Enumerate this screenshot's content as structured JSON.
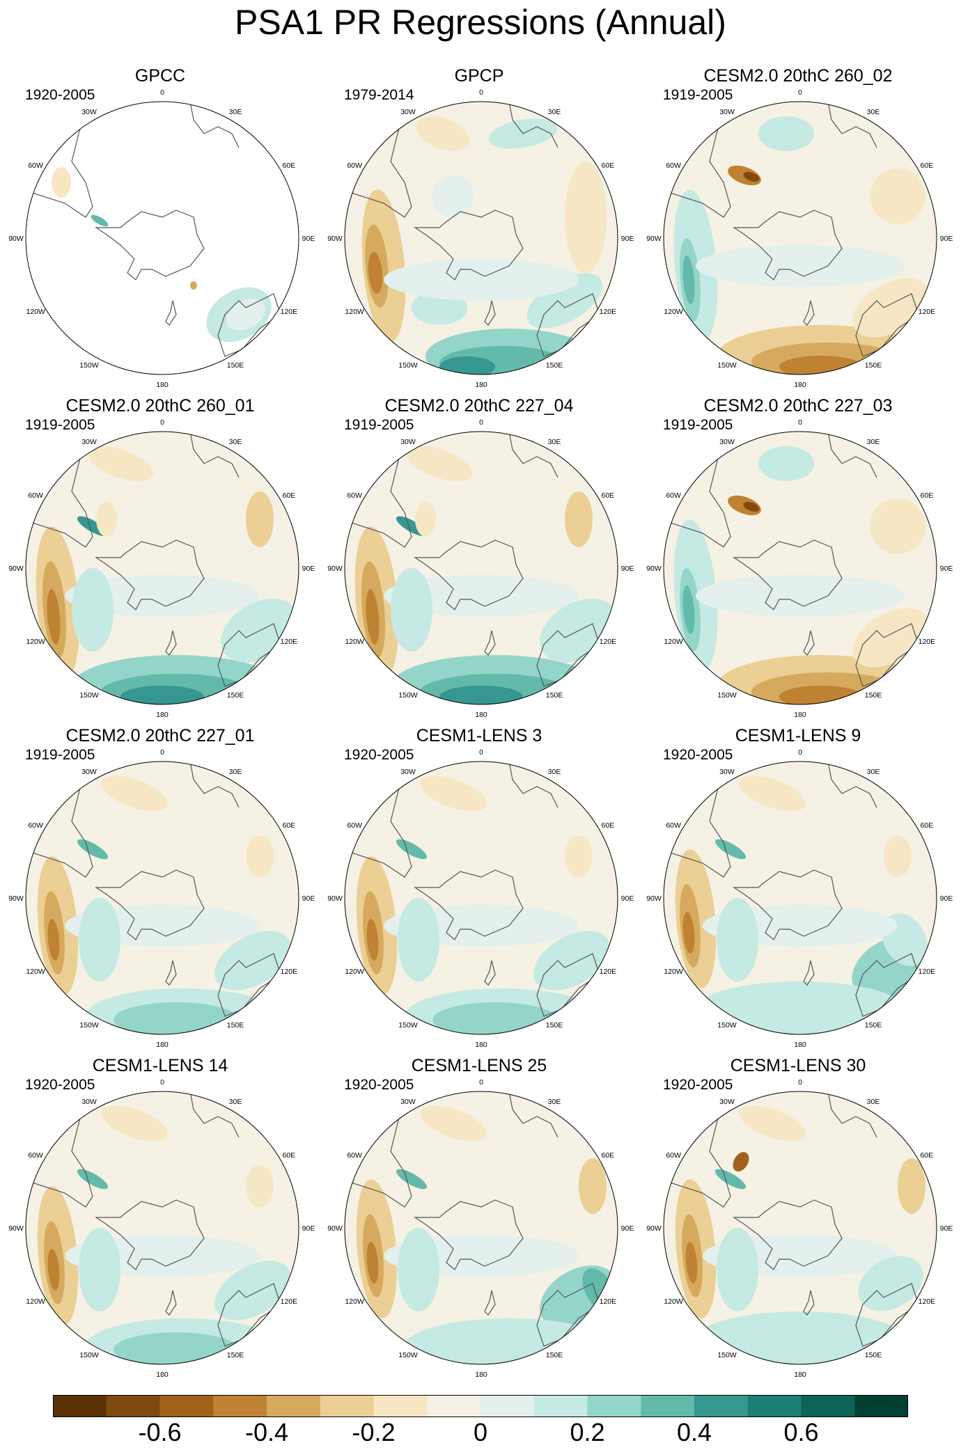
{
  "title": "PSA1 PR Regressions (Annual)",
  "panels": [
    {
      "title": "GPCC",
      "years": "1920-2005",
      "pattern": "obs-land-only"
    },
    {
      "title": "GPCP",
      "years": "1979-2014",
      "pattern": "obs-full"
    },
    {
      "title": "CESM2.0 20thC 260_02",
      "years": "1919-2005",
      "pattern": "dry-south"
    },
    {
      "title": "CESM2.0 20thC 260_01",
      "years": "1919-2005",
      "pattern": "wet-south"
    },
    {
      "title": "CESM2.0 20thC 227_04",
      "years": "1919-2005",
      "pattern": "wet-south"
    },
    {
      "title": "CESM2.0 20thC 227_03",
      "years": "1919-2005",
      "pattern": "dry-south"
    },
    {
      "title": "CESM2.0 20thC 227_01",
      "years": "1919-2005",
      "pattern": "mild-wet-south"
    },
    {
      "title": "CESM1-LENS 3",
      "years": "1920-2005",
      "pattern": "mild-wet-south"
    },
    {
      "title": "CESM1-LENS 9",
      "years": "1920-2005",
      "pattern": "mild-wet-east"
    },
    {
      "title": "CESM1-LENS 14",
      "years": "1920-2005",
      "pattern": "mild-wet-south"
    },
    {
      "title": "CESM1-LENS 25",
      "years": "1920-2005",
      "pattern": "wet-east"
    },
    {
      "title": "CESM1-LENS 30",
      "years": "1920-2005",
      "pattern": "mild"
    }
  ],
  "longitude_labels": [
    "0",
    "30E",
    "60E",
    "90E",
    "120E",
    "150E",
    "180",
    "150W",
    "120W",
    "90W",
    "60W",
    "30W"
  ],
  "colorbar": {
    "colors": [
      "#5a3005",
      "#7f4a0e",
      "#a0621b",
      "#bf8232",
      "#d6aa5e",
      "#ebcf94",
      "#f6e6c3",
      "#f5f1e4",
      "#e3f0ee",
      "#c5e9e3",
      "#94d5c9",
      "#63baab",
      "#35978f",
      "#1b7f74",
      "#0b6458",
      "#024034"
    ],
    "tick_labels": [
      "-0.6",
      "-0.4",
      "-0.2",
      "0",
      "0.2",
      "0.4",
      "0.6"
    ],
    "tick_values": [
      -0.6,
      -0.4,
      -0.2,
      0,
      0.2,
      0.4,
      0.6
    ],
    "range": [
      -0.8,
      0.8
    ]
  }
}
